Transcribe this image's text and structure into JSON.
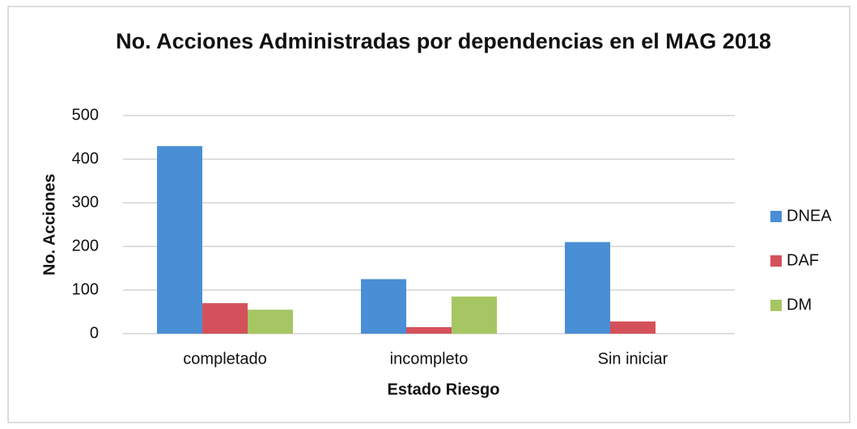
{
  "chart_data": {
    "type": "bar",
    "title": "No. Acciones Administradas por dependencias en el MAG 2018",
    "x_label": "Estado Riesgo",
    "y_label": "No. Acciones",
    "categories": [
      "completado",
      "incompleto",
      "Sin iniciar"
    ],
    "series": [
      {
        "name": "DNEA",
        "color": "#4a8ed6",
        "values": [
          430,
          125,
          210
        ]
      },
      {
        "name": "DAF",
        "color": "#d4515b",
        "values": [
          70,
          15,
          28
        ]
      },
      {
        "name": "DM",
        "color": "#a6c663",
        "values": [
          55,
          85,
          0
        ]
      }
    ],
    "ylim": [
      0,
      500
    ],
    "yticks": [
      0,
      100,
      200,
      300,
      400,
      500
    ],
    "grid": true,
    "legend": "right"
  }
}
